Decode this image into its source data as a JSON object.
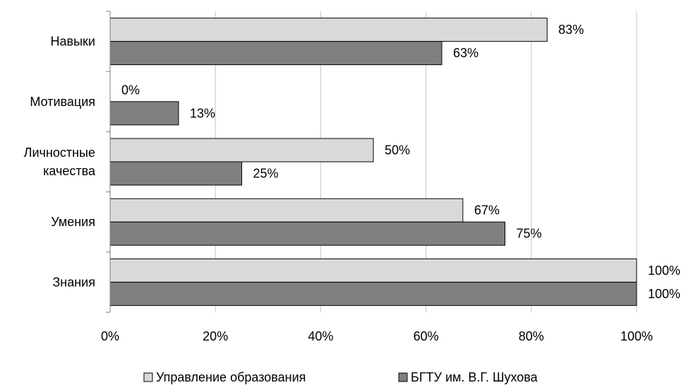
{
  "chart_data": {
    "type": "bar",
    "orientation": "horizontal",
    "title": "",
    "xlabel": "",
    "ylabel": "",
    "categories": [
      [
        "Навыки"
      ],
      [
        "Мотивация"
      ],
      [
        "Личностные",
        "качества"
      ],
      [
        "Умения"
      ],
      [
        "Знания"
      ]
    ],
    "series": [
      {
        "name": "Управление образования",
        "color": "#d9d9d9",
        "values": [
          83,
          0,
          50,
          67,
          100
        ],
        "labels": [
          "83%",
          "0%",
          "50%",
          "67%",
          "100%"
        ]
      },
      {
        "name": "БГТУ им. В.Г. Шухова",
        "color": "#808080",
        "values": [
          63,
          13,
          25,
          75,
          100
        ],
        "labels": [
          "63%",
          "13%",
          "25%",
          "75%",
          "100%"
        ]
      }
    ],
    "xlim": [
      0,
      100
    ],
    "xticks": [
      0,
      20,
      40,
      60,
      80,
      100
    ],
    "xtick_labels": [
      "0%",
      "20%",
      "40%",
      "60%",
      "80%",
      "100%"
    ],
    "grid": true,
    "legend": "bottom"
  }
}
